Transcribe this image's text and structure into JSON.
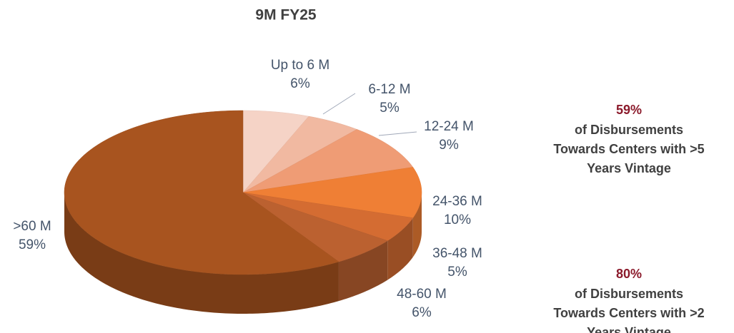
{
  "chart_data": {
    "type": "pie",
    "title": "9M FY25",
    "categories": [
      "Up to 6 M",
      "6-12 M",
      "12-24 M",
      "24-36 M",
      "36-48 M",
      "48-60 M",
      ">60 M"
    ],
    "values": [
      6,
      5,
      9,
      10,
      5,
      6,
      59
    ],
    "value_labels": [
      "6%",
      "5%",
      "9%",
      "10%",
      "5%",
      "6%",
      "59%"
    ],
    "colors": [
      "#f5d3c6",
      "#f1b9a1",
      "#ef9c75",
      "#ef7f35",
      "#d46c32",
      "#bb6130",
      "#a8541f"
    ],
    "annotations": [
      {
        "value": "59%",
        "lines": [
          "of Disbursements",
          "Towards Centers with >5",
          "Years Vintage"
        ]
      },
      {
        "value": "80%",
        "lines": [
          "of Disbursements",
          "Towards Centers with >2",
          "Years Vintage"
        ]
      }
    ]
  }
}
